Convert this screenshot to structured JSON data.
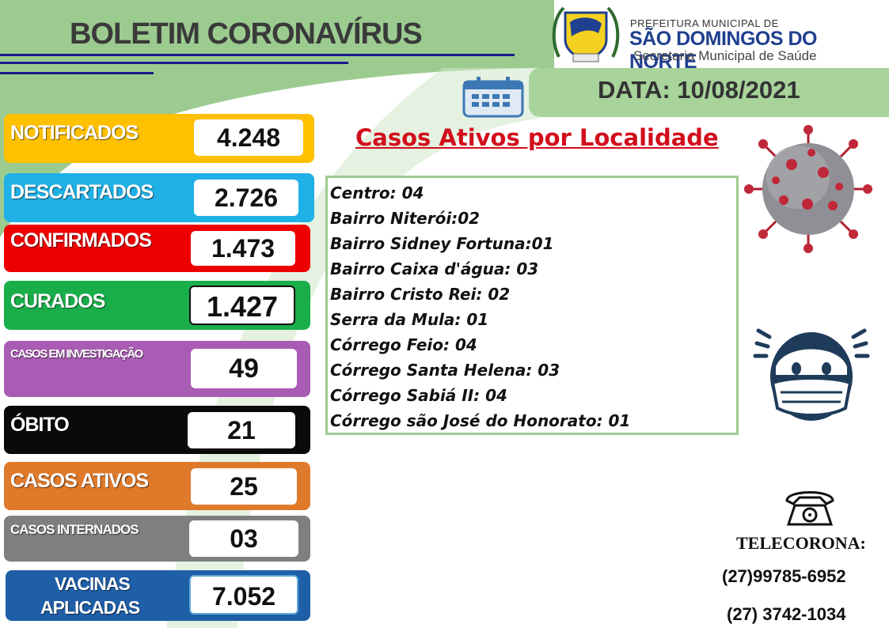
{
  "header": {
    "title": "BOLETIM CORONAVÍRUS",
    "prefeitura_small": "PREFEITURA MUNICIPAL DE",
    "prefeitura_name": "SÃO DOMINGOS DO NORTE",
    "secretaria": "Secretaria Municipal de Saúde",
    "date": "DATA: 10/08/2021"
  },
  "stats": {
    "notificados": {
      "label": "NOTIFICADOS",
      "value": "4.248",
      "color": "#ffc000"
    },
    "descartados": {
      "label": "DESCARTADOS",
      "value": "2.726",
      "color": "#1fb0e6"
    },
    "confirmados": {
      "label": "CONFIRMADOS",
      "value": "1.473",
      "color": "#ee0000"
    },
    "curados": {
      "label": "CURADOS",
      "value": "1.427",
      "color": "#1aae4a"
    },
    "investigacao": {
      "label": "CASOS EM INVESTIGAÇÃO",
      "value": "49",
      "color": "#a95cb3"
    },
    "obito": {
      "label": "ÓBITO",
      "value": "21",
      "color": "#0a0a0a"
    },
    "ativos": {
      "label": "CASOS ATIVOS",
      "value": "25",
      "color": "#e07a2b"
    },
    "internados": {
      "label": "CASOS INTERNADOS",
      "value": "03",
      "color": "#7f7f7f"
    },
    "vacinas": {
      "label_line1": "VACINAS",
      "label_line2": "APLICADAS",
      "value": "7.052",
      "color": "#1f5fa8"
    }
  },
  "localidades": {
    "heading": "Casos Ativos por Localidade",
    "items": [
      "Centro: 04",
      "Bairro Niterói:02",
      "Bairro Sidney Fortuna:01",
      "Bairro Caixa d'água: 03",
      "Bairro Cristo Rei: 02",
      "Serra da Mula: 01",
      "Córrego Feio: 04",
      "Córrego Santa Helena: 03",
      "Córrego Sabiá II: 04",
      "Córrego são José do Honorato: 01"
    ]
  },
  "contact": {
    "label": "TELECORONA:",
    "phone1": "(27)99785-6952",
    "phone2": "(27) 3742-1034"
  },
  "icons": [
    "coat-of-arms-icon",
    "calendar-icon",
    "virus-icon",
    "masked-face-icon",
    "telephone-icon"
  ]
}
